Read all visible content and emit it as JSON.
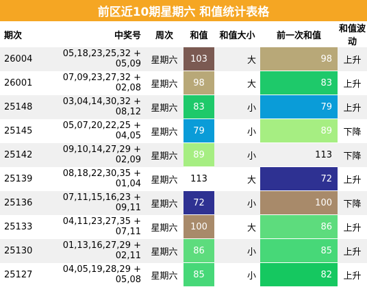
{
  "title": "前区近10期星期六 和值统计表格",
  "headers": [
    "期次",
    "中奖号",
    "周次",
    "和值",
    "和值大小",
    "前一次和值",
    "和值波动"
  ],
  "rows": [
    {
      "issue": "26004",
      "numbers": "05,18,23,25,32 + 05,09",
      "weekday": "星期六",
      "sum": "103",
      "size": "大",
      "prev": "98",
      "trend": "上升",
      "sum_color": "#7b5a52",
      "prev_color": "#b8a878"
    },
    {
      "issue": "26001",
      "numbers": "07,09,23,27,32 + 02,08",
      "weekday": "星期六",
      "sum": "98",
      "size": "大",
      "prev": "83",
      "trend": "上升",
      "sum_color": "#b8a878",
      "prev_color": "#1ec96a"
    },
    {
      "issue": "25148",
      "numbers": "03,04,14,30,32 + 08,12",
      "weekday": "星期六",
      "sum": "83",
      "size": "小",
      "prev": "79",
      "trend": "上升",
      "sum_color": "#1ec96a",
      "prev_color": "#0a9cd8"
    },
    {
      "issue": "25145",
      "numbers": "05,07,20,22,25 + 04,05",
      "weekday": "星期六",
      "sum": "79",
      "size": "小",
      "prev": "89",
      "trend": "下降",
      "sum_color": "#0a9cd8",
      "prev_color": "#a6ee82"
    },
    {
      "issue": "25142",
      "numbers": "09,10,14,27,29 + 02,09",
      "weekday": "星期六",
      "sum": "89",
      "size": "小",
      "prev": "113",
      "trend": "下降",
      "sum_color": "#a6ee82",
      "prev_color": ""
    },
    {
      "issue": "25139",
      "numbers": "08,18,22,30,35 + 01,04",
      "weekday": "星期六",
      "sum": "113",
      "size": "大",
      "prev": "72",
      "trend": "上升",
      "sum_color": "",
      "prev_color": "#2e3192"
    },
    {
      "issue": "25136",
      "numbers": "07,11,15,16,23 + 09,11",
      "weekday": "星期六",
      "sum": "72",
      "size": "小",
      "prev": "100",
      "trend": "下降",
      "sum_color": "#2e3192",
      "prev_color": "#a88a6a"
    },
    {
      "issue": "25133",
      "numbers": "04,11,23,27,35 + 07,11",
      "weekday": "星期六",
      "sum": "100",
      "size": "大",
      "prev": "86",
      "trend": "上升",
      "sum_color": "#a88a6a",
      "prev_color": "#5ddc7d"
    },
    {
      "issue": "25130",
      "numbers": "01,13,16,27,29 + 02,11",
      "weekday": "星期六",
      "sum": "86",
      "size": "小",
      "prev": "85",
      "trend": "上升",
      "sum_color": "#5ddc7d",
      "prev_color": "#47d878"
    },
    {
      "issue": "25127",
      "numbers": "04,05,19,28,29 + 05,08",
      "weekday": "星期六",
      "sum": "85",
      "size": "小",
      "prev": "82",
      "trend": "上升",
      "sum_color": "#47d878",
      "prev_color": "#15c860"
    }
  ]
}
